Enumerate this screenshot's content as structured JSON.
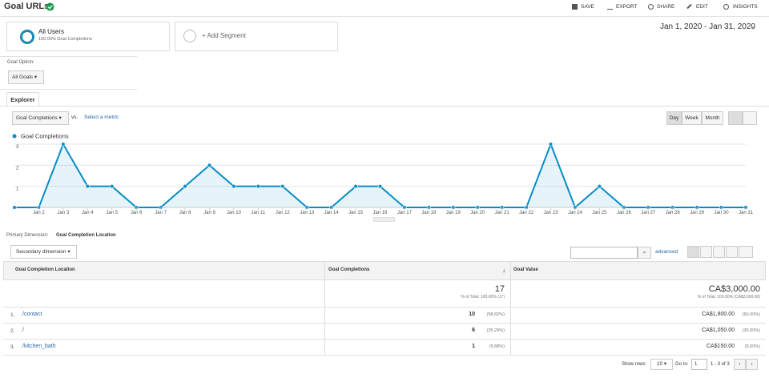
{
  "header": {
    "title": "Goal URLs",
    "actions": [
      "SAVE",
      "EXPORT",
      "SHARE",
      "EDIT",
      "INSIGHTS"
    ]
  },
  "segments": {
    "name": "All Users",
    "detail": "100.00% Goal Completions",
    "add": "+ Add Segment"
  },
  "date_range": "Jan 1, 2020 - Jan 31, 2020",
  "goal_option": {
    "label": "Goal Option:",
    "value": "All Goals"
  },
  "tab": "Explorer",
  "metric": {
    "selected": "Goal Completions",
    "vs": "vs.",
    "select": "Select a metric"
  },
  "granularity": [
    "Day",
    "Week",
    "Month"
  ],
  "chart_data": {
    "type": "line",
    "categories": [
      null,
      "Jan 2",
      "Jan 3",
      "Jan 4",
      "Jan 5",
      "Jan 6",
      "Jan 7",
      "Jan 8",
      "Jan 9",
      "Jan 10",
      "Jan 11",
      "Jan 12",
      "Jan 13",
      "Jan 14",
      "Jan 15",
      "Jan 16",
      "Jan 17",
      "Jan 18",
      "Jan 19",
      "Jan 20",
      "Jan 21",
      "Jan 22",
      "Jan 23",
      "Jan 24",
      "Jan 25",
      "Jan 26",
      "Jan 27",
      "Jan 28",
      "Jan 29",
      "Jan 30",
      "Jan 31"
    ],
    "series": [
      {
        "name": "Goal Completions",
        "color": "#058dc7",
        "values": [
          0,
          0,
          3,
          1,
          1,
          0,
          0,
          1,
          2,
          1,
          1,
          1,
          0,
          0,
          1,
          1,
          0,
          0,
          0,
          0,
          0,
          0,
          3,
          0,
          1,
          0,
          0,
          0,
          0,
          0,
          0
        ]
      }
    ],
    "ylim": [
      0,
      3
    ],
    "yticks": [
      1,
      2,
      3
    ],
    "grid": true,
    "area": true
  },
  "primary_dimension": {
    "label": "Primary Dimension:",
    "value": "Goal Completion Location"
  },
  "secondary_dimension": "Secondary dimension",
  "advanced": "advanced",
  "table": {
    "columns": [
      "Goal Completion Location",
      "Goal Completions",
      "Goal Value"
    ],
    "totals": {
      "completions": "17",
      "completions_note": "% of Total: 100.00% (17)",
      "value": "CA$3,000.00",
      "value_note": "% of Total: 100.00% (CA$3,000.00)"
    },
    "rows": [
      [
        "1.",
        "/contact",
        "10",
        "(58.82%)",
        "CA$1,800.00",
        "(60.00%)"
      ],
      [
        "2.",
        "/",
        "6",
        "(35.29%)",
        "CA$1,050.00",
        "(35.00%)"
      ],
      [
        "3.",
        "/kitchen_bath",
        "1",
        "(5.88%)",
        "CA$150.00",
        "(5.00%)"
      ]
    ]
  },
  "pagination": {
    "show_rows": "Show rows:",
    "rows_value": "10",
    "goto": "Go to:",
    "page": "1",
    "range": "1 - 3 of 3"
  }
}
